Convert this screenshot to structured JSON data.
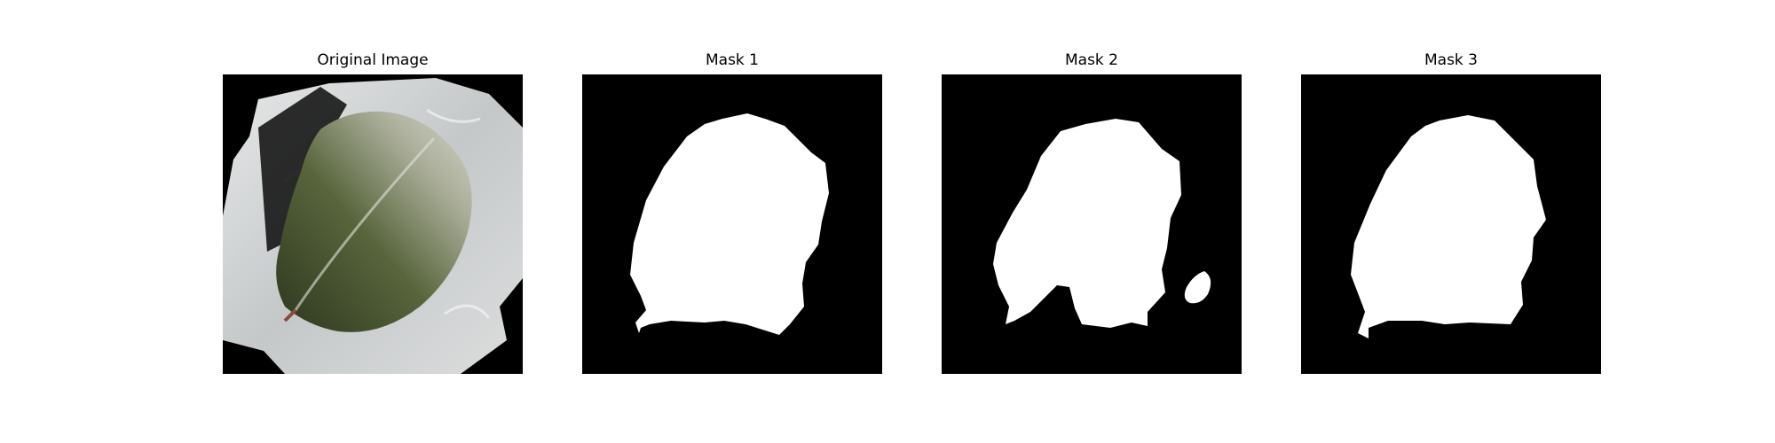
{
  "figure": {
    "panels": [
      {
        "title": "Original Image"
      },
      {
        "title": "Mask 1"
      },
      {
        "title": "Mask 2"
      },
      {
        "title": "Mask 3"
      }
    ]
  },
  "colors": {
    "background": "#ffffff",
    "mask_background": "#000000",
    "mask_foreground": "#ffffff",
    "leaf_dark": "#3f4a2c",
    "leaf_light": "#c9ccbd",
    "paper": "#d6d8d8"
  }
}
